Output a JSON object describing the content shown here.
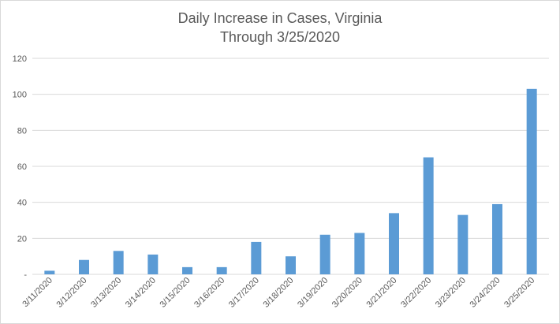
{
  "chart_data": {
    "type": "bar",
    "title": "Daily Increase in Cases, Virginia",
    "subtitle": "Through 3/25/2020",
    "categories": [
      "3/11/2020",
      "3/12/2020",
      "3/13/2020",
      "3/14/2020",
      "3/15/2020",
      "3/16/2020",
      "3/17/2020",
      "3/18/2020",
      "3/19/2020",
      "3/20/2020",
      "3/21/2020",
      "3/22/2020",
      "3/23/2020",
      "3/24/2020",
      "3/25/2020"
    ],
    "values": [
      2,
      8,
      13,
      11,
      4,
      4,
      18,
      10,
      22,
      23,
      34,
      65,
      33,
      39,
      103
    ],
    "yticks": [
      "-",
      "20",
      "40",
      "60",
      "80",
      "100",
      "120"
    ],
    "ylim": [
      0,
      120
    ],
    "grid": true,
    "legend": "none",
    "bar_color": "#5b9bd5",
    "grid_color": "#d9d9d9"
  }
}
